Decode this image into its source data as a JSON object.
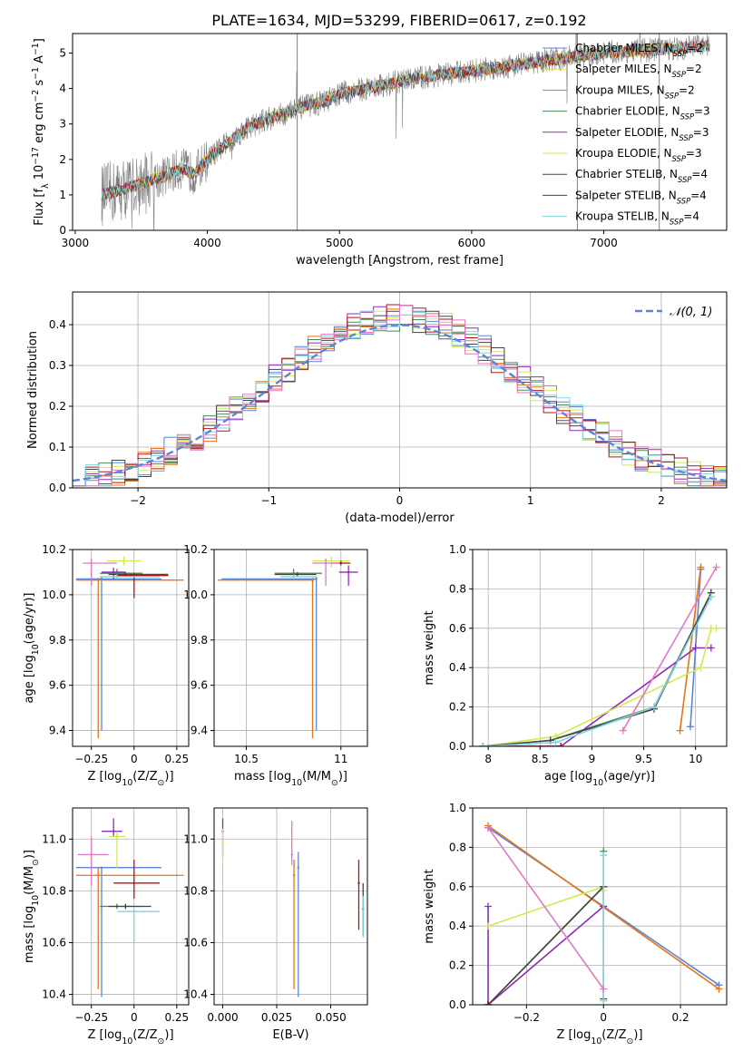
{
  "figure": {
    "title": "PLATE=1634, MJD=53299, FIBERID=0617, z=0.192"
  },
  "chart_data": [
    {
      "id": "spectrum",
      "type": "line",
      "title": "PLATE=1634, MJD=53299, FIBERID=0617, z=0.192",
      "xlabel": "wavelength [Angstrom, rest frame]",
      "ylabel": "Flux [f_λ 10^-17 erg cm^-2 s^-1 A^-1]",
      "xlim": [
        2980,
        7930
      ],
      "ylim": [
        0,
        5.55
      ],
      "xticks": [
        3000,
        4000,
        5000,
        6000,
        7000
      ],
      "yticks": [
        0,
        1,
        2,
        3,
        4,
        5
      ],
      "grid": false,
      "legend_position": "top-right",
      "legend": [
        {
          "label": "Chabrier MILES, N_SSP=2",
          "color": "#5b86d6"
        },
        {
          "label": "Salpeter MILES, N_SSP=2",
          "color": "#e9d44a"
        },
        {
          "label": "Kroupa MILES, N_SSP=2",
          "color": "#e8741a"
        },
        {
          "label": "Chabrier ELODIE, N_SSP=3",
          "color": "#4a8a5a"
        },
        {
          "label": "Salpeter ELODIE, N_SSP=3",
          "color": "#8d2cb6"
        },
        {
          "label": "Kroupa ELODIE, N_SSP=3",
          "color": "#d0ea55"
        },
        {
          "label": "Chabrier STELIB, N_SSP=4",
          "color": "#444444"
        },
        {
          "label": "Salpeter STELIB, N_SSP=4",
          "color": "#b01515"
        },
        {
          "label": "Kroupa STELIB, N_SSP=4",
          "color": "#7ed6de"
        }
      ],
      "model_continuum": {
        "x": [
          3200,
          3300,
          3400,
          3500,
          3600,
          3700,
          3800,
          3900,
          4000,
          4100,
          4200,
          4300,
          4400,
          4500,
          4600,
          4700,
          4800,
          4900,
          5000,
          5200,
          5400,
          5600,
          5800,
          6000,
          6200,
          6400,
          6600,
          6800,
          7000,
          7200,
          7400,
          7600,
          7800
        ],
        "y": [
          1.0,
          1.1,
          1.2,
          1.3,
          1.45,
          1.55,
          1.75,
          1.6,
          2.0,
          2.3,
          2.6,
          2.9,
          3.05,
          3.2,
          3.3,
          3.45,
          3.55,
          3.65,
          3.85,
          4.0,
          4.15,
          4.3,
          4.4,
          4.5,
          4.6,
          4.7,
          4.8,
          4.9,
          5.0,
          5.05,
          5.1,
          5.15,
          5.2
        ]
      }
    },
    {
      "id": "residuals",
      "type": "histogram",
      "xlabel": "(data-model)/error",
      "ylabel": "Normed distribution",
      "xlim": [
        -2.5,
        2.5
      ],
      "ylim": [
        0,
        0.48
      ],
      "xticks": [
        -2,
        -1,
        0,
        1,
        2
      ],
      "yticks": [
        0.0,
        0.1,
        0.2,
        0.3,
        0.4
      ],
      "grid": true,
      "legend_position": "top-right",
      "legend": [
        {
          "label": "N(0,1)",
          "color": "#5b86d6",
          "style": "dashed"
        }
      ],
      "bin_width": 0.1,
      "bins_start": -2.5,
      "series_colors": [
        "#5b86d6",
        "#e8741a",
        "#4a8a5a",
        "#8d2cb6",
        "#d0ea55",
        "#444444",
        "#b01515",
        "#7ed6de",
        "#e377c2"
      ]
    },
    {
      "id": "age-vs-Z",
      "type": "scatter",
      "xlabel": "Z [log10(Z/Z_sun)]",
      "ylabel": "age [log10(age/yr)]",
      "xlim": [
        -0.36,
        0.32
      ],
      "ylim": [
        9.33,
        10.2
      ],
      "xticks": [
        -0.25,
        0.0,
        0.25
      ],
      "yticks": [
        9.4,
        9.6,
        9.8,
        10.0,
        10.2
      ],
      "grid": true,
      "points": [
        {
          "x": -0.19,
          "y": 10.07,
          "xerr": [
            0.15,
            0.35
          ],
          "yerr": [
            0.67,
            0.01
          ],
          "color": "#5b86d6"
        },
        {
          "x": -0.21,
          "y": 10.065,
          "xerr": [
            0.13,
            0.5
          ],
          "yerr": [
            0.7,
            0.01
          ],
          "color": "#e8741a"
        },
        {
          "x": -0.1,
          "y": 10.095,
          "xerr": [
            0.1,
            0.15
          ],
          "yerr": [
            0.01,
            0.02
          ],
          "color": "#4a8a5a"
        },
        {
          "x": -0.12,
          "y": 10.1,
          "xerr": [
            0.07,
            0.07
          ],
          "yerr": [
            0.03,
            0.02
          ],
          "color": "#8d2cb6"
        },
        {
          "x": -0.06,
          "y": 10.15,
          "xerr": [
            0.1,
            0.1
          ],
          "yerr": [
            0.02,
            0.02
          ],
          "color": "#d0ea55"
        },
        {
          "x": -0.05,
          "y": 10.09,
          "xerr": [
            0.1,
            0.25
          ],
          "yerr": [
            0.01,
            0.01
          ],
          "color": "#444444"
        },
        {
          "x": 0.0,
          "y": 10.085,
          "xerr": [
            0.1,
            0.2
          ],
          "yerr": [
            0.1,
            0.01
          ],
          "color": "#b01515"
        },
        {
          "x": -0.1,
          "y": 10.08,
          "xerr": [
            0.1,
            0.25
          ],
          "yerr": [
            0.01,
            0.01
          ],
          "color": "#7ed6de"
        },
        {
          "x": -0.25,
          "y": 10.14,
          "xerr": [
            0.05,
            0.15
          ],
          "yerr": [
            0.1,
            0.02
          ],
          "color": "#e377c2"
        }
      ]
    },
    {
      "id": "age-vs-mass",
      "type": "scatter",
      "xlabel": "mass [log10(M/M_sun)]",
      "ylabel": "",
      "xlim": [
        10.33,
        11.14
      ],
      "ylim": [
        9.33,
        10.2
      ],
      "xticks": [
        10.5,
        11.0
      ],
      "yticks": [
        9.4,
        9.6,
        9.8,
        10.0,
        10.2
      ],
      "grid": true,
      "points": [
        {
          "x": 10.87,
          "y": 10.07,
          "xerr": [
            0.5,
            0.0
          ],
          "yerr": [
            0.67,
            0.01
          ],
          "color": "#5b86d6"
        },
        {
          "x": 10.85,
          "y": 10.065,
          "xerr": [
            0.5,
            0.01
          ],
          "yerr": [
            0.7,
            0.01
          ],
          "color": "#e8741a"
        },
        {
          "x": 10.75,
          "y": 10.095,
          "xerr": [
            0.1,
            0.15
          ],
          "yerr": [
            0.01,
            0.02
          ],
          "color": "#4a8a5a"
        },
        {
          "x": 11.04,
          "y": 10.1,
          "xerr": [
            0.05,
            0.05
          ],
          "yerr": [
            0.06,
            0.03
          ],
          "color": "#8d2cb6"
        },
        {
          "x": 10.95,
          "y": 10.15,
          "xerr": [
            0.1,
            0.1
          ],
          "yerr": [
            0.03,
            0.02
          ],
          "color": "#d0ea55"
        },
        {
          "x": 10.77,
          "y": 10.09,
          "xerr": [
            0.12,
            0.1
          ],
          "yerr": [
            0.01,
            0.01
          ],
          "color": "#444444"
        },
        {
          "x": 11.0,
          "y": 10.14,
          "xerr": [
            0.05,
            0.05
          ],
          "yerr": [
            0.01,
            0.01
          ],
          "color": "#b01515"
        },
        {
          "x": 10.75,
          "y": 10.08,
          "xerr": [
            0.07,
            0.12
          ],
          "yerr": [
            0.01,
            0.01
          ],
          "color": "#7ed6de"
        },
        {
          "x": 10.92,
          "y": 10.14,
          "xerr": [
            0.07,
            0.07
          ],
          "yerr": [
            0.1,
            0.02
          ],
          "color": "#e377c2"
        }
      ]
    },
    {
      "id": "mass-weight-vs-age",
      "type": "line",
      "xlabel": "age [log10(age/yr)]",
      "ylabel": "mass weight",
      "xlim": [
        7.85,
        10.3
      ],
      "ylim": [
        0.0,
        1.0
      ],
      "xticks": [
        8.0,
        8.5,
        9.0,
        9.5,
        10.0
      ],
      "yticks": [
        0.0,
        0.2,
        0.4,
        0.6,
        0.8,
        1.0
      ],
      "grid": true,
      "series": [
        {
          "color": "#5b86d6",
          "x": [
            9.95,
            10.05
          ],
          "y": [
            0.1,
            0.9
          ]
        },
        {
          "color": "#e8741a",
          "x": [
            9.85,
            10.05
          ],
          "y": [
            0.08,
            0.91
          ]
        },
        {
          "color": "#4a8a5a",
          "x": [
            7.95,
            8.6,
            9.6,
            10.15
          ],
          "y": [
            0.0,
            0.03,
            0.2,
            0.78
          ]
        },
        {
          "color": "#8d2cb6",
          "x": [
            7.95,
            8.7,
            10.0,
            10.15
          ],
          "y": [
            0.0,
            0.0,
            0.5,
            0.5
          ]
        },
        {
          "color": "#d0ea55",
          "x": [
            7.95,
            8.65,
            10.05,
            10.15,
            10.2
          ],
          "y": [
            0.0,
            0.05,
            0.4,
            0.6,
            0.6
          ]
        },
        {
          "color": "#444444",
          "x": [
            7.95,
            8.6,
            9.6,
            10.15
          ],
          "y": [
            0.0,
            0.03,
            0.19,
            0.78
          ]
        },
        {
          "color": "#b01515",
          "x": [
            7.95,
            8.7
          ],
          "y": [
            0.0,
            0.0
          ]
        },
        {
          "color": "#7ed6de",
          "x": [
            7.95,
            8.65,
            9.6,
            10.15
          ],
          "y": [
            0.0,
            0.02,
            0.2,
            0.76
          ]
        },
        {
          "color": "#e377c2",
          "x": [
            9.3,
            10.2
          ],
          "y": [
            0.08,
            0.91
          ]
        }
      ]
    },
    {
      "id": "mass-vs-Z",
      "type": "scatter",
      "xlabel": "Z [log10(Z/Z_sun)]",
      "ylabel": "mass [log10(M/M_sun)]",
      "xlim": [
        -0.36,
        0.32
      ],
      "ylim": [
        10.36,
        11.12
      ],
      "xticks": [
        -0.25,
        0.0,
        0.25
      ],
      "yticks": [
        10.4,
        10.6,
        10.8,
        11.0
      ],
      "grid": true,
      "points": [
        {
          "x": -0.19,
          "y": 10.89,
          "xerr": [
            0.15,
            0.35
          ],
          "yerr": [
            0.5,
            0.0
          ],
          "color": "#5b86d6"
        },
        {
          "x": -0.21,
          "y": 10.86,
          "xerr": [
            0.13,
            0.5
          ],
          "yerr": [
            0.44,
            0.03
          ],
          "color": "#e8741a"
        },
        {
          "x": -0.1,
          "y": 10.74,
          "xerr": [
            0.1,
            0.15
          ],
          "yerr": [
            0.01,
            0.01
          ],
          "color": "#4a8a5a"
        },
        {
          "x": -0.12,
          "y": 11.03,
          "xerr": [
            0.07,
            0.05
          ],
          "yerr": [
            0.02,
            0.05
          ],
          "color": "#8d2cb6"
        },
        {
          "x": -0.1,
          "y": 11.01,
          "xerr": [
            0.05,
            0.05
          ],
          "yerr": [
            0.12,
            0.02
          ],
          "color": "#d0ea55"
        },
        {
          "x": -0.05,
          "y": 10.74,
          "xerr": [
            0.1,
            0.15
          ],
          "yerr": [
            0.01,
            0.01
          ],
          "color": "#444444"
        },
        {
          "x": 0.0,
          "y": 10.83,
          "xerr": [
            0.12,
            0.15
          ],
          "yerr": [
            0.06,
            0.09
          ],
          "color": "#b01515"
        },
        {
          "x": 0.0,
          "y": 10.72,
          "xerr": [
            0.1,
            0.15
          ],
          "yerr": [
            0.12,
            0.01
          ],
          "color": "#7ed6de"
        },
        {
          "x": -0.25,
          "y": 10.94,
          "xerr": [
            0.08,
            0.1
          ],
          "yerr": [
            0.12,
            0.07
          ],
          "color": "#e377c2"
        }
      ]
    },
    {
      "id": "mass-vs-EBV",
      "type": "scatter",
      "xlabel": "E(B-V)",
      "ylabel": "",
      "xlim": [
        -0.004,
        0.067
      ],
      "ylim": [
        10.36,
        11.12
      ],
      "xticks": [
        0.0,
        0.025,
        0.05
      ],
      "xtick_labels": [
        "0.000",
        "0.025",
        "0.050"
      ],
      "yticks": [
        10.4,
        10.6,
        10.8,
        11.0
      ],
      "grid": true,
      "points": [
        {
          "x": 0.035,
          "y": 10.89,
          "yerr": [
            0.5,
            0.06
          ],
          "color": "#5b86d6"
        },
        {
          "x": 0.033,
          "y": 10.86,
          "yerr": [
            0.44,
            0.06
          ],
          "color": "#e8741a"
        },
        {
          "x": 0.0,
          "y": 11.03,
          "yerr": [
            0.1,
            0.05
          ],
          "color": "#8d2cb6"
        },
        {
          "x": 0.0,
          "y": 10.99,
          "yerr": [
            0.08,
            0.05
          ],
          "color": "#d0ea55"
        },
        {
          "x": 0.063,
          "y": 10.83,
          "yerr": [
            0.18,
            0.09
          ],
          "color": "#b01515"
        },
        {
          "x": 0.065,
          "y": 10.73,
          "yerr": [
            0.1,
            0.1
          ],
          "color": "#444444"
        },
        {
          "x": 0.065,
          "y": 10.72,
          "yerr": [
            0.1,
            0.06
          ],
          "color": "#7ed6de"
        },
        {
          "x": 0.032,
          "y": 10.94,
          "yerr": [
            0.04,
            0.13
          ],
          "color": "#e377c2"
        }
      ]
    },
    {
      "id": "mass-weight-vs-Z",
      "type": "line",
      "xlabel": "Z [log10(Z/Z_sun)]",
      "ylabel": "mass weight",
      "xlim": [
        -0.34,
        0.32
      ],
      "ylim": [
        0.0,
        1.0
      ],
      "xticks": [
        -0.2,
        0.0,
        0.2
      ],
      "yticks": [
        0.0,
        0.2,
        0.4,
        0.6,
        0.8,
        1.0
      ],
      "grid": true,
      "series": [
        {
          "color": "#5b86d6",
          "x": [
            -0.3,
            0.3
          ],
          "y": [
            0.9,
            0.1
          ]
        },
        {
          "color": "#e8741a",
          "x": [
            -0.3,
            0.3
          ],
          "y": [
            0.91,
            0.08
          ]
        },
        {
          "color": "#4a8a5a",
          "x": [
            -0.3,
            0.0,
            0.0
          ],
          "y": [
            0.0,
            0.6,
            0.78
          ]
        },
        {
          "color": "#8d2cb6",
          "x": [
            -0.3,
            -0.3,
            0.0,
            0.0
          ],
          "y": [
            0.5,
            0.0,
            0.5,
            0.5
          ]
        },
        {
          "color": "#d0ea55",
          "x": [
            -0.3,
            0.0,
            0.0
          ],
          "y": [
            0.4,
            0.6,
            0.58
          ]
        },
        {
          "color": "#444444",
          "x": [
            -0.3,
            0.0,
            0.0
          ],
          "y": [
            0.0,
            0.6,
            0.03
          ]
        },
        {
          "color": "#b01515",
          "x": [
            -0.3,
            -0.3
          ],
          "y": [
            0.0,
            0.0
          ]
        },
        {
          "color": "#7ed6de",
          "x": [
            0.0,
            0.0
          ],
          "y": [
            0.02,
            0.76
          ]
        },
        {
          "color": "#e377c2",
          "x": [
            -0.3,
            0.0
          ],
          "y": [
            0.9,
            0.08
          ]
        }
      ]
    }
  ]
}
